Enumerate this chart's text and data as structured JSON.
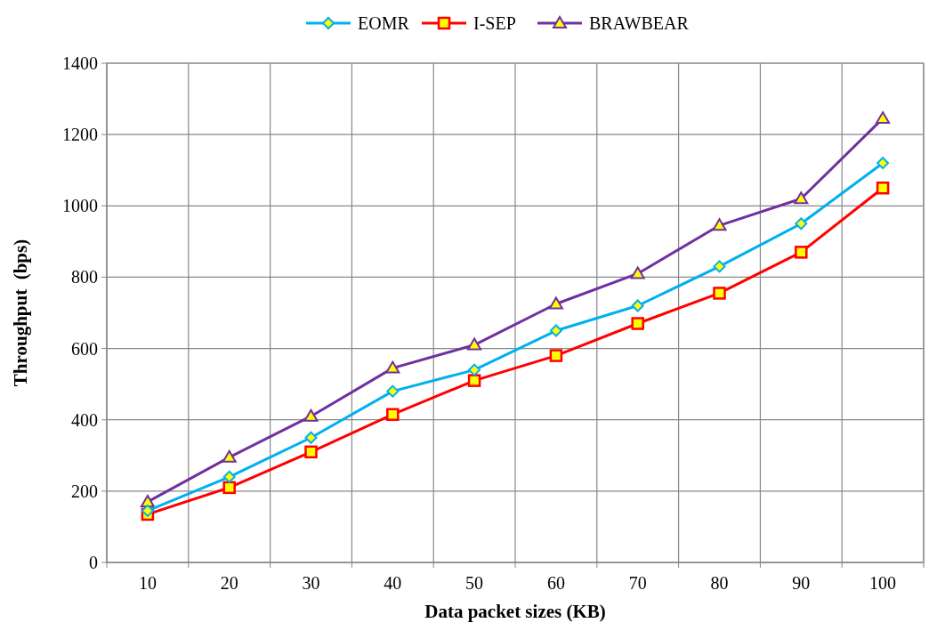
{
  "chart_data": {
    "type": "line",
    "xlabel": "Data packet sizes (KB)",
    "ylabel": "Throughput  (bps)",
    "categories": [
      "10",
      "20",
      "30",
      "40",
      "50",
      "60",
      "70",
      "80",
      "90",
      "100"
    ],
    "ylim": [
      0,
      1400
    ],
    "yticks": [
      0,
      200,
      400,
      600,
      800,
      1000,
      1200,
      1400
    ],
    "grid": true,
    "legend": "top",
    "series": [
      {
        "name": "EOMR",
        "color": "#00b0f0",
        "marker": "diamond",
        "values": [
          145,
          240,
          350,
          480,
          540,
          650,
          720,
          830,
          950,
          1120
        ]
      },
      {
        "name": "I-SEP",
        "color": "#ff0000",
        "marker": "square",
        "values": [
          135,
          210,
          310,
          415,
          510,
          580,
          670,
          755,
          870,
          1050
        ]
      },
      {
        "name": "BRAWBEAR",
        "color": "#7030a0",
        "marker": "triangle",
        "values": [
          170,
          295,
          410,
          545,
          610,
          725,
          810,
          945,
          1020,
          1245
        ]
      }
    ]
  }
}
